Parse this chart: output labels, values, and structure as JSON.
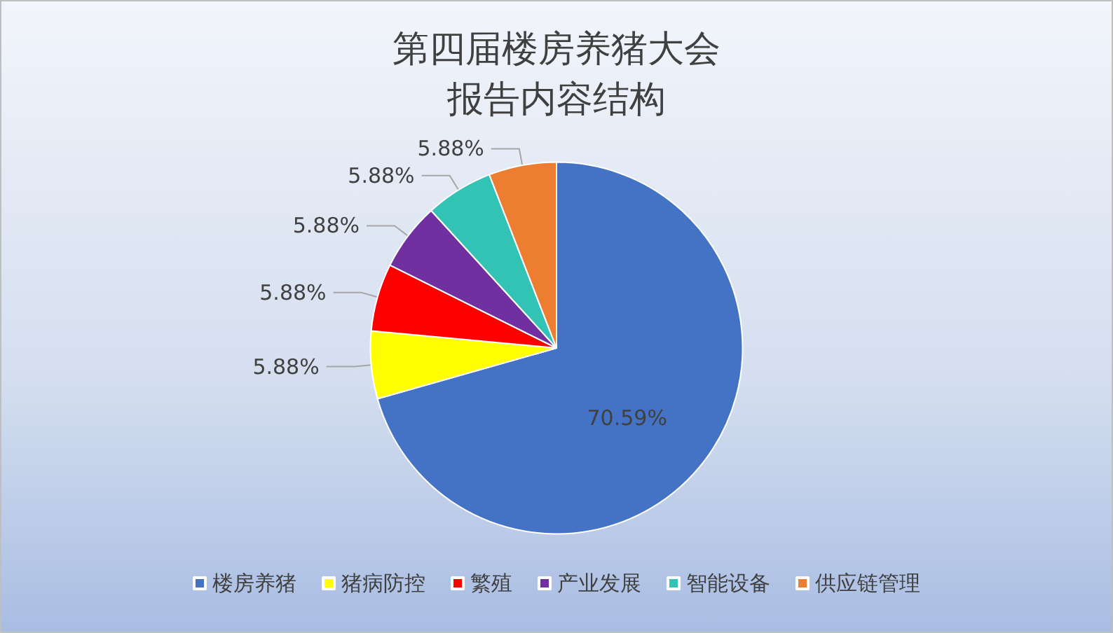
{
  "chart_data": {
    "type": "pie",
    "title": "第四届楼房养猪大会",
    "subtitle": "报告内容结构",
    "categories": [
      "楼房养猪",
      "猪病防控",
      "繁殖",
      "产业发展",
      "智能设备",
      "供应链管理"
    ],
    "values": [
      70.59,
      5.88,
      5.88,
      5.88,
      5.88,
      5.88
    ],
    "value_labels": [
      "70.59%",
      "5.88%",
      "5.88%",
      "5.88%",
      "5.88%",
      "5.88%"
    ],
    "colors": [
      "#4472c4",
      "#ffff00",
      "#ff0000",
      "#7030a0",
      "#33c3b5",
      "#ed7d31"
    ],
    "legend": "bottom"
  }
}
